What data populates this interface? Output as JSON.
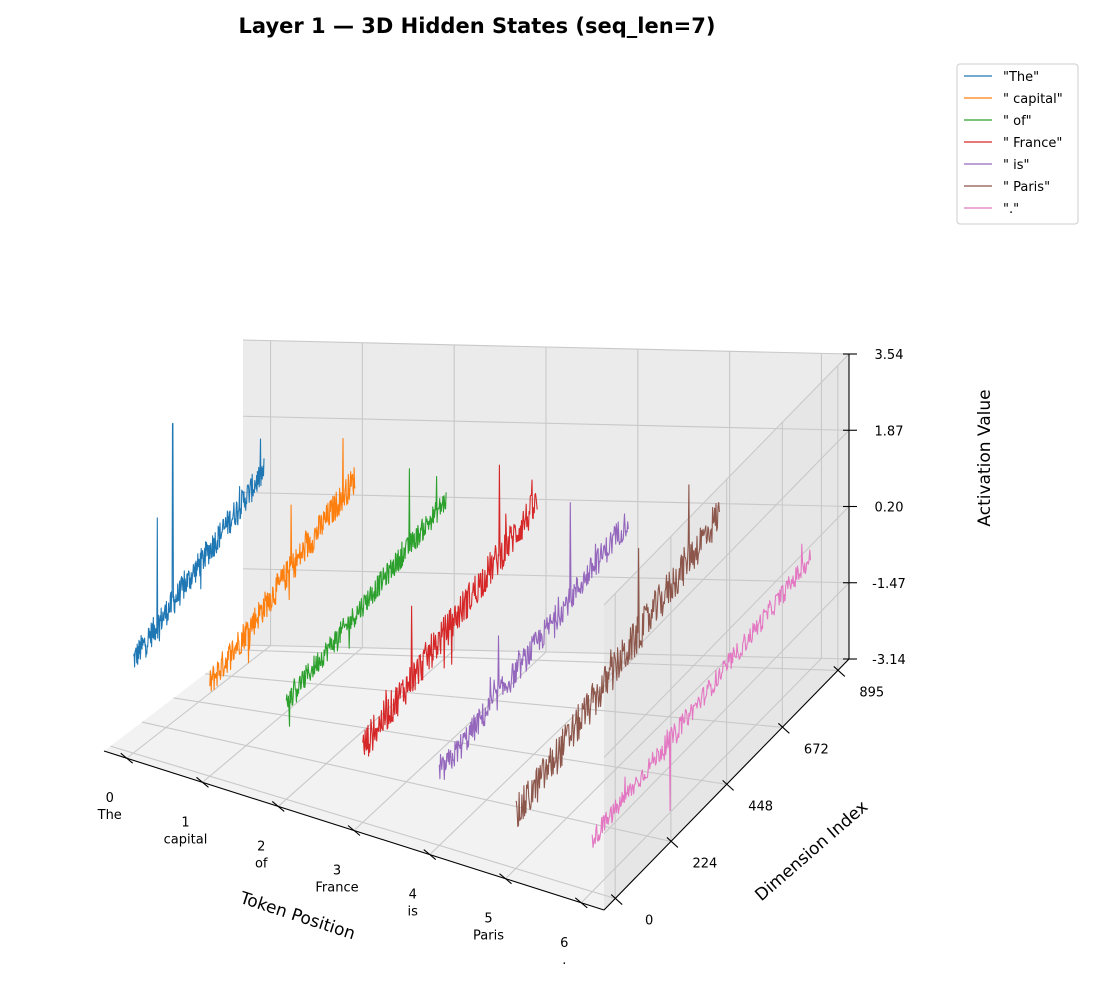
{
  "chart_data": {
    "type": "line",
    "projection": "3d",
    "title": "Layer 1 — 3D Hidden States (seq_len=7)",
    "xlabel": "Token Position",
    "ylabel": "Dimension Index",
    "zlabel": "Activation Value",
    "x_ticks": [
      {
        "value": 0,
        "label": "0",
        "token": "The"
      },
      {
        "value": 1,
        "label": "1",
        "token": "capital"
      },
      {
        "value": 2,
        "label": "2",
        "token": "of"
      },
      {
        "value": 3,
        "label": "3",
        "token": "France"
      },
      {
        "value": 4,
        "label": "4",
        "token": "is"
      },
      {
        "value": 5,
        "label": "5",
        "token": "Paris"
      },
      {
        "value": 6,
        "label": "6",
        "token": "."
      }
    ],
    "y_ticks": [
      "0",
      "224",
      "448",
      "672",
      "895"
    ],
    "z_ticks": [
      "-3.14",
      "-1.47",
      "0.20",
      "1.87",
      "3.54"
    ],
    "xlim": [
      -0.3,
      6.3
    ],
    "ylim": [
      -45,
      940
    ],
    "zlim": [
      -3.14,
      3.54
    ],
    "grid": true,
    "legend_position": "top-right",
    "series": [
      {
        "name": "\"The\"",
        "color": "#1f77b4",
        "x": 0,
        "dims": [
          0,
          895
        ],
        "base": [
          -1.1,
          0.8
        ],
        "noise": 0.3,
        "spikes": [
          [
            270,
            3.4
          ],
          [
            165,
            1.6
          ]
        ]
      },
      {
        "name": "\" capital\"",
        "color": "#ff7f0e",
        "x": 1,
        "dims": [
          0,
          895
        ],
        "base": [
          -1.1,
          0.7
        ],
        "noise": 0.32,
        "spikes": [
          [
            820,
            1.8
          ],
          [
            500,
            1.3
          ]
        ]
      },
      {
        "name": "\" of\"",
        "color": "#2ca02c",
        "x": 2,
        "dims": [
          0,
          895
        ],
        "base": [
          -1.0,
          0.3
        ],
        "noise": 0.25,
        "spikes": [
          [
            690,
            1.7
          ],
          [
            840,
            1.0
          ]
        ]
      },
      {
        "name": "\" France\"",
        "color": "#d62728",
        "x": 3,
        "dims": [
          0,
          895
        ],
        "base": [
          -1.5,
          0.3
        ],
        "noise": 0.38,
        "spikes": [
          [
            700,
            1.9
          ],
          [
            250,
            0.6
          ]
        ]
      },
      {
        "name": "\" is\"",
        "color": "#9467bd",
        "x": 4,
        "dims": [
          0,
          895
        ],
        "base": [
          -1.6,
          0.0
        ],
        "noise": 0.3,
        "spikes": [
          [
            620,
            1.6
          ],
          [
            280,
            0.2
          ]
        ]
      },
      {
        "name": "\" Paris\"",
        "color": "#8c564b",
        "x": 5,
        "dims": [
          0,
          895
        ],
        "base": [
          -2.0,
          0.2
        ],
        "noise": 0.42,
        "spikes": [
          [
            760,
            1.5
          ],
          [
            540,
            1.2
          ]
        ]
      },
      {
        "name": "\".\"",
        "color": "#e377c2",
        "x": 6,
        "dims": [
          0,
          895
        ],
        "base": [
          -2.0,
          -0.7
        ],
        "noise": 0.22,
        "spikes": [
          [
            320,
            -3.1
          ],
          [
            860,
            -0.2
          ]
        ]
      }
    ]
  }
}
